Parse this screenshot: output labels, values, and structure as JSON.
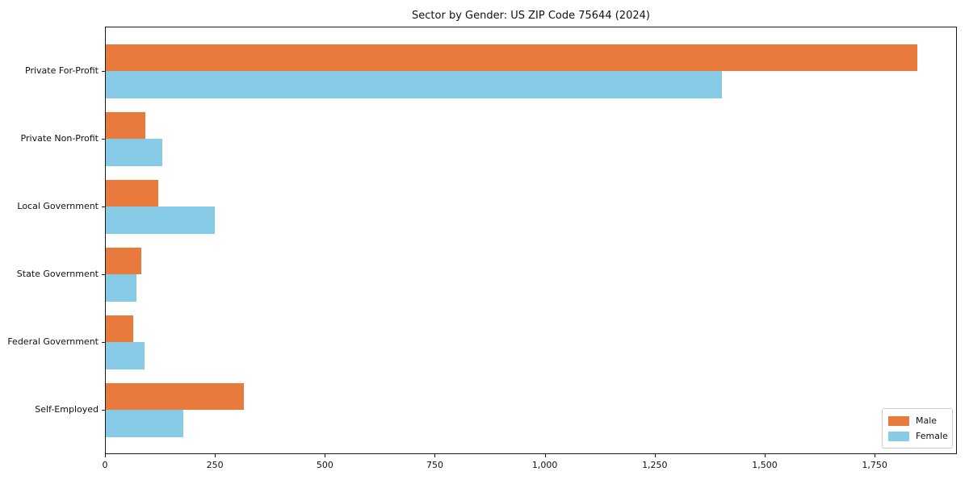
{
  "chart_data": {
    "type": "bar",
    "orientation": "horizontal",
    "title": "Sector by Gender: US ZIP Code 75644 (2024)",
    "categories": [
      "Private For-Profit",
      "Private Non-Profit",
      "Local Government",
      "State Government",
      "Federal Government",
      "Self-Employed"
    ],
    "series": [
      {
        "name": "Male",
        "color": "#e87a3d",
        "values": [
          1845,
          90,
          120,
          81,
          63,
          314
        ]
      },
      {
        "name": "Female",
        "color": "#87cbe6",
        "values": [
          1400,
          128,
          247,
          70,
          89,
          176
        ]
      }
    ],
    "x_ticks": [
      0,
      250,
      500,
      750,
      1000,
      1250,
      1500,
      1750
    ],
    "x_tick_labels": [
      "0",
      "250",
      "500",
      "750",
      "1,000",
      "1,250",
      "1,500",
      "1,750"
    ],
    "xlim": [
      0,
      1937
    ],
    "ylabel": "",
    "xlabel": "",
    "grid": false,
    "legend_position": "lower right",
    "spine_color": "#1a1a1a",
    "text_color": "#111111"
  }
}
